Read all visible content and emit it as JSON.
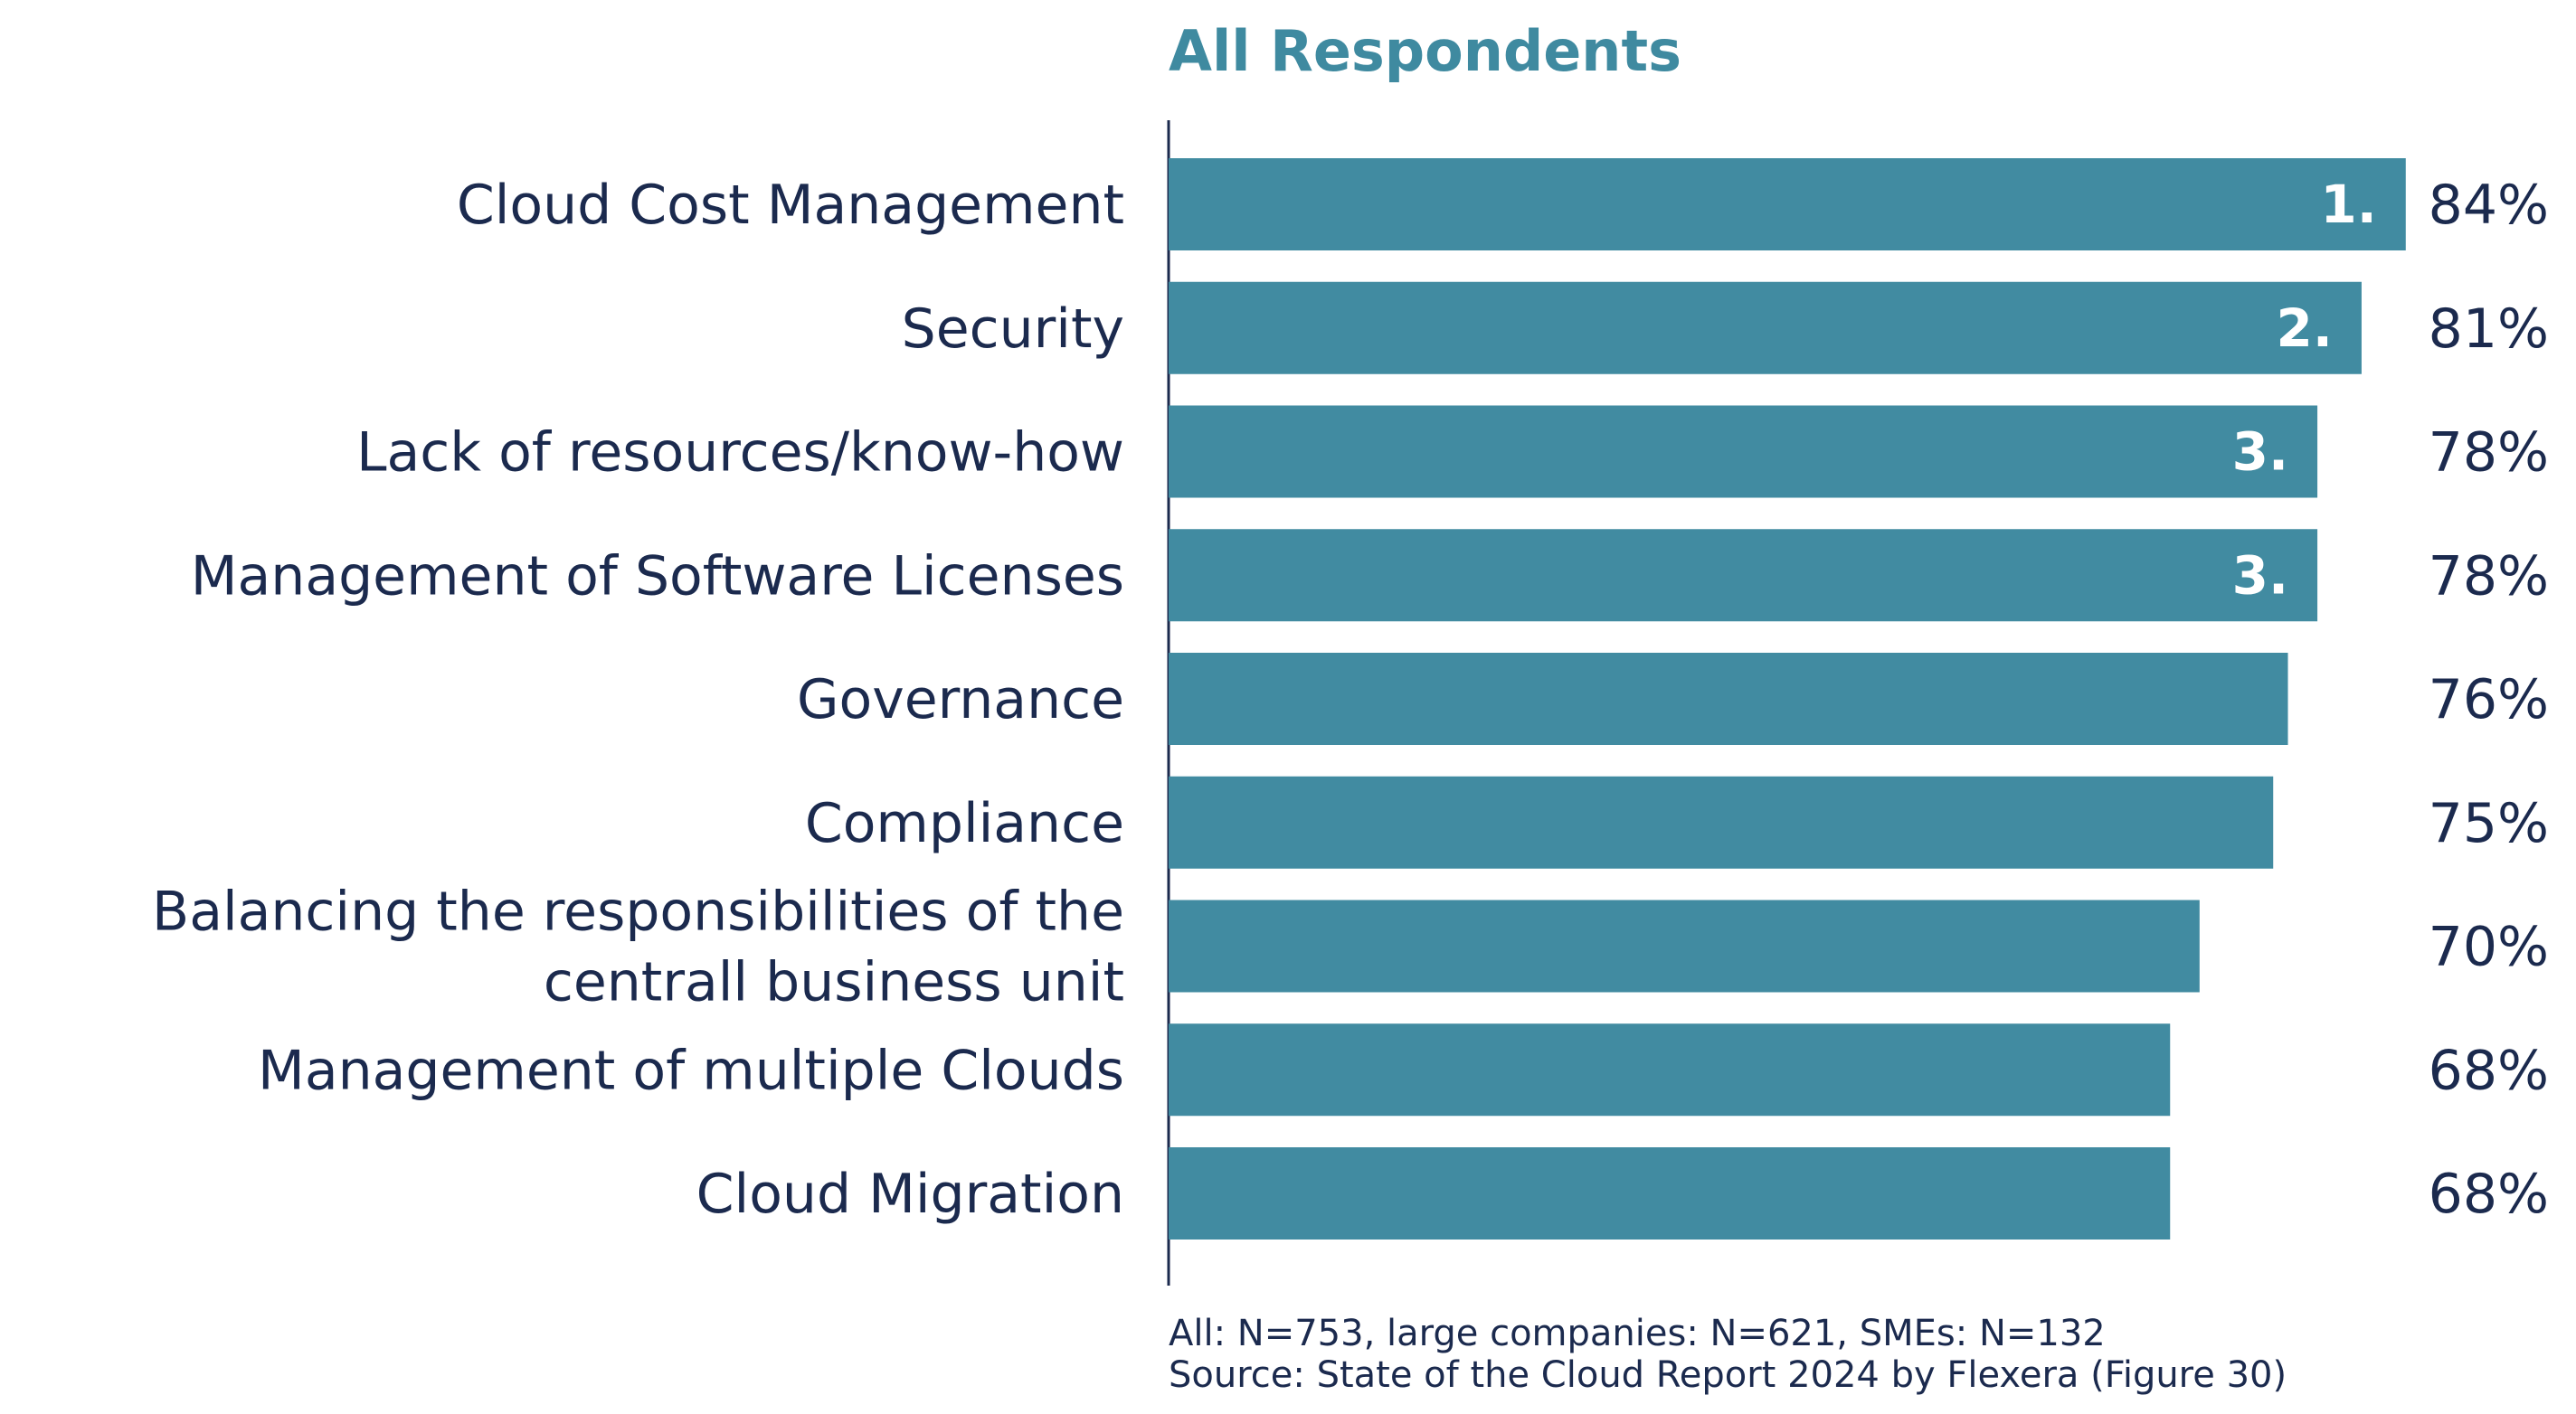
{
  "chart_data": {
    "type": "bar",
    "orientation": "horizontal",
    "title": "All Respondents",
    "categories": [
      [
        "Cloud Cost Management"
      ],
      [
        "Security"
      ],
      [
        "Lack of resources/know-how"
      ],
      [
        "Management of Software Licenses"
      ],
      [
        "Governance"
      ],
      [
        "Compliance"
      ],
      [
        "Balancing the responsibilities of the",
        "centrall business unit"
      ],
      [
        "Management of multiple Clouds"
      ],
      [
        "Cloud Migration"
      ]
    ],
    "values": [
      84,
      81,
      78,
      78,
      76,
      75,
      70,
      68,
      68
    ],
    "value_labels": [
      "84%",
      "81%",
      "78%",
      "78%",
      "76%",
      "75%",
      "70%",
      "68%",
      "68%"
    ],
    "rank_labels": [
      "1.",
      "2.",
      "3.",
      "3.",
      "",
      "",
      "",
      "",
      ""
    ],
    "xlim": [
      0,
      100
    ],
    "xlabel": "",
    "ylabel": "",
    "grid": false,
    "legend": "none",
    "colors": {
      "bar": "#418ba1",
      "title": "#3f8aa0",
      "text": "#1b2a4e",
      "axis": "#1b2a4e",
      "rank_text": "#ffffff"
    }
  },
  "footnote": {
    "sample": "All: N=753, large companies: N=621, SMEs: N=132",
    "source": "Source: State of the Cloud Report 2024 by Flexera (Figure 30)"
  }
}
